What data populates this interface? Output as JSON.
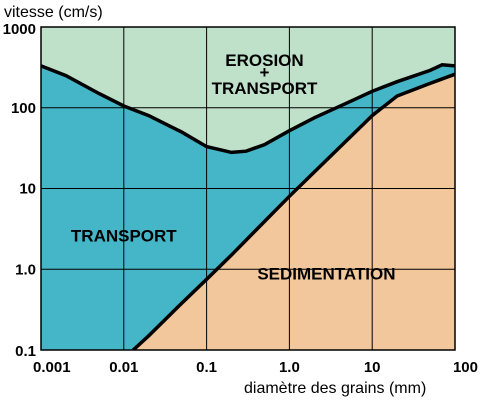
{
  "chart_data": {
    "type": "area",
    "title": "",
    "xlabel": "diamètre des grains (mm)",
    "ylabel": "vitesse (cm/s)",
    "x_scale": "log",
    "y_scale": "log",
    "xlim": [
      0.001,
      100
    ],
    "ylim": [
      0.1,
      1000
    ],
    "x_ticks": [
      "0.001",
      "0.01",
      "0.1",
      "1.0",
      "10",
      "100"
    ],
    "y_ticks": [
      "0.1",
      "1.0",
      "10",
      "100",
      "1000"
    ],
    "grid": true,
    "regions": [
      {
        "name_lines": [
          "EROSION",
          "+",
          "TRANSPORT"
        ],
        "color": "#bfe0c9"
      },
      {
        "name_lines": [
          "TRANSPORT"
        ],
        "color": "#45b5c8"
      },
      {
        "name_lines": [
          "SEDIMENTATION"
        ],
        "color": "#f3c79c"
      }
    ],
    "series": [
      {
        "role": "erosion-threshold",
        "color": "#000000",
        "x": [
          0.001,
          0.002,
          0.005,
          0.01,
          0.02,
          0.05,
          0.1,
          0.2,
          0.3,
          0.5,
          1,
          2,
          5,
          10,
          20,
          50,
          70,
          100
        ],
        "y": [
          330,
          250,
          150,
          105,
          80,
          50,
          33,
          28,
          29,
          35,
          52,
          75,
          115,
          160,
          210,
          290,
          340,
          330
        ]
      },
      {
        "role": "sedimentation-threshold",
        "color": "#000000",
        "x": [
          0.013,
          0.02,
          0.05,
          0.1,
          0.2,
          0.5,
          1,
          2,
          5,
          10,
          20,
          50,
          100
        ],
        "y": [
          0.1,
          0.15,
          0.38,
          0.75,
          1.5,
          3.9,
          8.0,
          16,
          40,
          80,
          140,
          200,
          260
        ]
      }
    ]
  }
}
